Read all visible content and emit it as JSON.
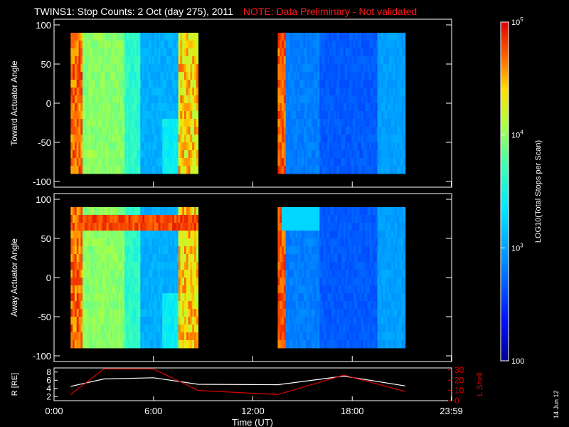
{
  "title": {
    "main": "TWINS1: Stop Counts:  2 Oct (day 275), 2011",
    "note": "NOTE: Data Preliminary - Not validated"
  },
  "datestamp": "14 Jun 12",
  "colors": {
    "background": "#000000",
    "axes": "#ffffff",
    "note": "#ff1a1a",
    "l_shell_line": "#e00000",
    "r_line": "#ffffff"
  },
  "time_axis": {
    "label": "Time (UT)",
    "ticks": [
      "0:00",
      "6:00",
      "12:00",
      "18:00",
      "23:59"
    ]
  },
  "panels": [
    {
      "id": "toward",
      "ylabel": "Toward Actuator Angle",
      "yticks": [
        "100",
        "50",
        "0",
        "-50",
        "-100"
      ]
    },
    {
      "id": "away",
      "ylabel": "Away Actuator Angle",
      "yticks": [
        "100",
        "50",
        "0",
        "-50",
        "-100"
      ]
    }
  ],
  "colorbar": {
    "label": "LOG10(Total Stops per Scan)",
    "ticks": [
      {
        "base": "10",
        "exp": "5"
      },
      {
        "base": "10",
        "exp": "4"
      },
      {
        "base": "10",
        "exp": "3"
      },
      {
        "base": "100",
        "exp": ""
      }
    ]
  },
  "orbit_panel": {
    "left_label": "R [RE]",
    "right_label": "L Shell",
    "left_ticks": [
      "8",
      "6",
      "4",
      "2"
    ],
    "right_ticks": [
      "30",
      "20",
      "10",
      "0"
    ]
  },
  "chart_data": {
    "type": "heatmap",
    "x_range_hours": [
      0,
      24
    ],
    "y_range_deg": [
      -100,
      100
    ],
    "data_windows_ut_hours": [
      [
        1.0,
        8.7
      ],
      [
        13.5,
        21.2
      ]
    ],
    "color_scale": {
      "type": "log",
      "min": 100,
      "max": 100000
    },
    "orbit": {
      "x_hours": [
        1.0,
        3.0,
        6.0,
        8.7,
        13.5,
        17.5,
        21.2
      ],
      "R_RE": [
        4.5,
        6.3,
        6.6,
        5.0,
        4.9,
        7.0,
        4.6
      ],
      "L_shell": [
        6,
        31,
        31,
        10,
        6,
        25,
        9
      ]
    }
  }
}
